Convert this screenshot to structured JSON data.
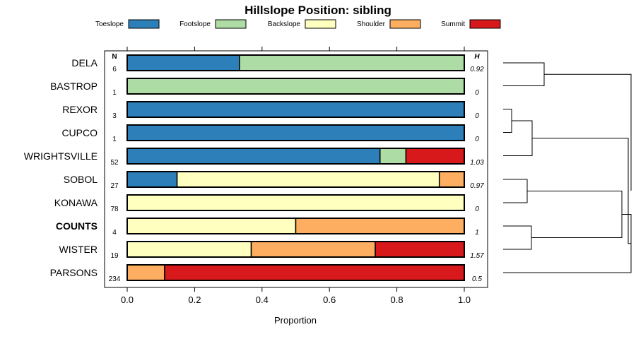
{
  "chart_data": {
    "type": "bar",
    "stacked": true,
    "orientation": "horizontal",
    "title": "Hillslope Position: sibling",
    "xlabel": "Proportion",
    "xlim": [
      0,
      1
    ],
    "xticks": [
      "0.0",
      "0.2",
      "0.4",
      "0.6",
      "0.8",
      "1.0"
    ],
    "n_header": "N",
    "h_header": "H",
    "legend": [
      {
        "name": "Toeslope",
        "color": "#2C7FB8"
      },
      {
        "name": "Footslope",
        "color": "#ADDDA4"
      },
      {
        "name": "Backslope",
        "color": "#FFFFBF"
      },
      {
        "name": "Shoulder",
        "color": "#FDAE61"
      },
      {
        "name": "Summit",
        "color": "#D7191C"
      }
    ],
    "rows": [
      {
        "label": "DELA",
        "n": "6",
        "h": "0.92",
        "bold": false,
        "values": [
          0.333,
          0.667,
          0,
          0,
          0
        ]
      },
      {
        "label": "BASTROP",
        "n": "1",
        "h": "0",
        "bold": false,
        "values": [
          0,
          1,
          0,
          0,
          0
        ]
      },
      {
        "label": "REXOR",
        "n": "3",
        "h": "0",
        "bold": false,
        "values": [
          1,
          0,
          0,
          0,
          0
        ]
      },
      {
        "label": "CUPCO",
        "n": "1",
        "h": "0",
        "bold": false,
        "values": [
          1,
          0,
          0,
          0,
          0
        ]
      },
      {
        "label": "WRIGHTSVILLE",
        "n": "52",
        "h": "1.03",
        "bold": false,
        "values": [
          0.75,
          0.077,
          0,
          0,
          0.173
        ]
      },
      {
        "label": "SOBOL",
        "n": "27",
        "h": "0.97",
        "bold": false,
        "values": [
          0.148,
          0,
          0.778,
          0.074,
          0
        ]
      },
      {
        "label": "KONAWA",
        "n": "78",
        "h": "0",
        "bold": false,
        "values": [
          0,
          0,
          1,
          0,
          0
        ]
      },
      {
        "label": "COUNTS",
        "n": "4",
        "h": "1",
        "bold": true,
        "values": [
          0,
          0,
          0.5,
          0.5,
          0
        ]
      },
      {
        "label": "WISTER",
        "n": "19",
        "h": "1.57",
        "bold": false,
        "values": [
          0,
          0,
          0.368,
          0.368,
          0.264
        ]
      },
      {
        "label": "PARSONS",
        "n": "234",
        "h": "0.5",
        "bold": false,
        "values": [
          0,
          0,
          0,
          0.111,
          0.889
        ]
      }
    ]
  }
}
